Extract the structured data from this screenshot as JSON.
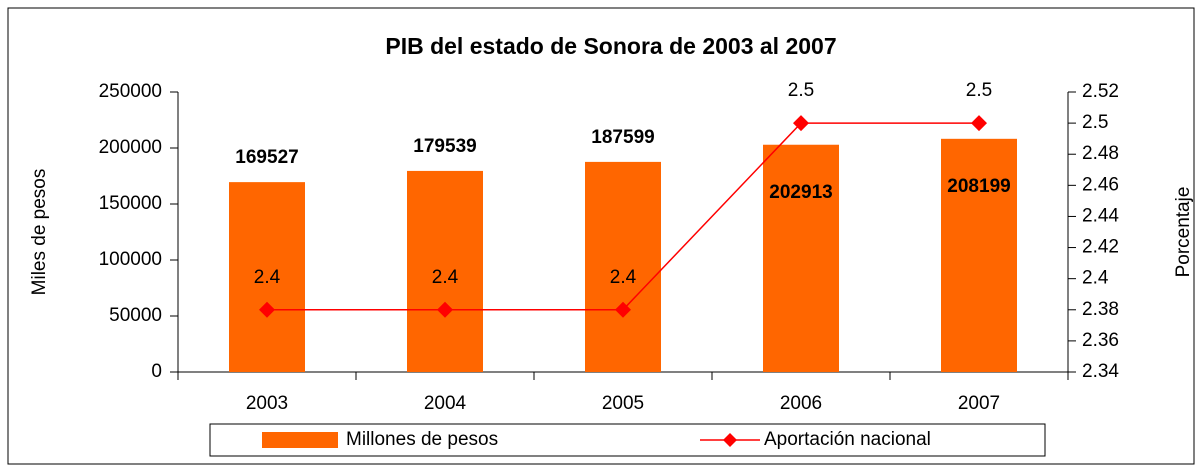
{
  "chart_data": {
    "type": "bar",
    "title": "PIB del estado de Sonora de 2003 al 2007",
    "y_label": "Miles de pesos",
    "y2_label": "Porcentaje",
    "categories": [
      "2003",
      "2004",
      "2005",
      "2006",
      "2007"
    ],
    "series": [
      {
        "name": "Millones de pesos",
        "color": "#ff6600",
        "type": "bar",
        "values": [
          169527,
          179539,
          187599,
          202913,
          208199
        ]
      },
      {
        "name": "Aportación nacional",
        "color": "#ff0000",
        "type": "line",
        "axis": "y2",
        "values": [
          2.38,
          2.38,
          2.38,
          2.5,
          2.5
        ],
        "value_labels": [
          "2.4",
          "2.4",
          "2.4",
          "2.5",
          "2.5"
        ]
      }
    ],
    "ylim": [
      0,
      250000
    ],
    "yticks": [
      0,
      50000,
      100000,
      150000,
      200000,
      250000
    ],
    "y2lim": [
      2.34,
      2.52
    ],
    "y2ticks": [
      2.34,
      2.36,
      2.38,
      2.4,
      2.42,
      2.44,
      2.46,
      2.48,
      2.5,
      2.52
    ],
    "legend": "bottom"
  }
}
